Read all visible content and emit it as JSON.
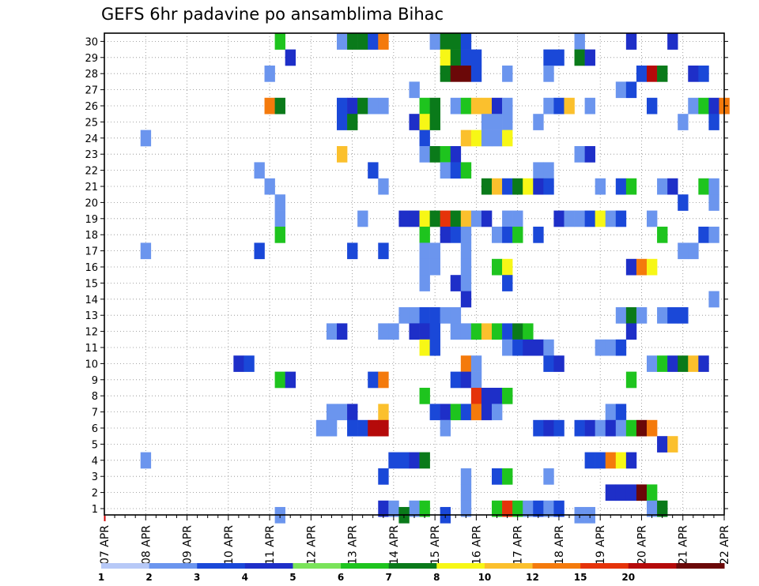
{
  "chart_data": {
    "type": "heatmap",
    "title": "GEFS 6hr padavine po ansamblima Bihac",
    "xlabel": "",
    "ylabel": "",
    "x_unit": "6-hour steps from 07 APR 00Z",
    "x_tick_labels": [
      "07 APR",
      "08 APR",
      "09 APR",
      "10 APR",
      "11 APR",
      "12 APR",
      "13 APR",
      "14 APR",
      "15 APR",
      "16 APR",
      "17 APR",
      "18 APR",
      "19 APR",
      "20 APR",
      "21 APR",
      "22 APR"
    ],
    "y_tick_labels": [
      "1",
      "2",
      "3",
      "4",
      "5",
      "6",
      "7",
      "8",
      "9",
      "10",
      "11",
      "12",
      "13",
      "14",
      "15",
      "16",
      "17",
      "18",
      "19",
      "20",
      "21",
      "22",
      "23",
      "24",
      "25",
      "26",
      "27",
      "28",
      "29",
      "30"
    ],
    "xlim": [
      0,
      60
    ],
    "ylim": [
      1,
      30
    ],
    "legend_labels": [
      "1",
      "2",
      "3",
      "4",
      "5",
      "6",
      "7",
      "8",
      "10",
      "12",
      "15",
      "20"
    ],
    "legend_colors": [
      "#b7c9f7",
      "#6b95ee",
      "#1a48d8",
      "#1e2fc8",
      "#7ae35a",
      "#1ec41e",
      "#0a7a1a",
      "#f7f716",
      "#fbc02d",
      "#f47a0c",
      "#e5330a",
      "#b50a0a",
      "#6b0808"
    ],
    "points": [
      [
        17,
        30,
        5
      ],
      [
        23,
        30,
        1
      ],
      [
        24,
        30,
        6
      ],
      [
        25,
        30,
        6
      ],
      [
        26,
        30,
        2
      ],
      [
        27,
        30,
        9
      ],
      [
        32,
        30,
        1
      ],
      [
        33,
        30,
        6
      ],
      [
        34,
        30,
        6
      ],
      [
        35,
        30,
        2
      ],
      [
        46,
        30,
        1
      ],
      [
        51,
        30,
        3
      ],
      [
        55,
        30,
        3
      ],
      [
        18,
        29,
        3
      ],
      [
        33,
        29,
        7
      ],
      [
        34,
        29,
        6
      ],
      [
        35,
        29,
        2
      ],
      [
        36,
        29,
        2
      ],
      [
        43,
        29,
        2
      ],
      [
        44,
        29,
        2
      ],
      [
        46,
        29,
        6
      ],
      [
        47,
        29,
        3
      ],
      [
        16,
        28,
        1
      ],
      [
        33,
        28,
        6
      ],
      [
        34,
        28,
        12
      ],
      [
        35,
        28,
        12
      ],
      [
        36,
        28,
        2
      ],
      [
        39,
        28,
        1
      ],
      [
        43,
        28,
        1
      ],
      [
        52,
        28,
        2
      ],
      [
        53,
        28,
        11
      ],
      [
        54,
        28,
        6
      ],
      [
        57,
        28,
        3
      ],
      [
        58,
        28,
        2
      ],
      [
        30,
        27,
        1
      ],
      [
        50,
        27,
        1
      ],
      [
        51,
        27,
        2
      ],
      [
        16,
        26,
        9
      ],
      [
        17,
        26,
        6
      ],
      [
        23,
        26,
        2
      ],
      [
        24,
        26,
        3
      ],
      [
        25,
        26,
        6
      ],
      [
        26,
        26,
        1
      ],
      [
        27,
        26,
        1
      ],
      [
        31,
        26,
        5
      ],
      [
        32,
        26,
        6
      ],
      [
        34,
        26,
        1
      ],
      [
        35,
        26,
        5
      ],
      [
        36,
        26,
        8
      ],
      [
        37,
        26,
        8
      ],
      [
        38,
        26,
        3
      ],
      [
        39,
        26,
        1
      ],
      [
        43,
        26,
        1
      ],
      [
        44,
        26,
        2
      ],
      [
        45,
        26,
        8
      ],
      [
        47,
        26,
        1
      ],
      [
        53,
        26,
        2
      ],
      [
        57,
        26,
        1
      ],
      [
        58,
        26,
        5
      ],
      [
        59,
        26,
        3
      ],
      [
        60,
        26,
        9
      ],
      [
        23,
        25,
        2
      ],
      [
        24,
        25,
        6
      ],
      [
        30,
        25,
        3
      ],
      [
        31,
        25,
        7
      ],
      [
        32,
        25,
        6
      ],
      [
        37,
        25,
        1
      ],
      [
        38,
        25,
        1
      ],
      [
        39,
        25,
        1
      ],
      [
        42,
        25,
        1
      ],
      [
        56,
        25,
        1
      ],
      [
        59,
        25,
        2
      ],
      [
        4,
        24,
        1
      ],
      [
        31,
        24,
        2
      ],
      [
        35,
        24,
        8
      ],
      [
        36,
        24,
        7
      ],
      [
        37,
        24,
        1
      ],
      [
        38,
        24,
        1
      ],
      [
        39,
        24,
        7
      ],
      [
        23,
        23,
        8
      ],
      [
        31,
        23,
        1
      ],
      [
        32,
        23,
        6
      ],
      [
        33,
        23,
        5
      ],
      [
        34,
        23,
        3
      ],
      [
        46,
        23,
        1
      ],
      [
        47,
        23,
        3
      ],
      [
        15,
        22,
        1
      ],
      [
        26,
        22,
        2
      ],
      [
        33,
        22,
        1
      ],
      [
        34,
        22,
        2
      ],
      [
        35,
        22,
        5
      ],
      [
        42,
        22,
        1
      ],
      [
        43,
        22,
        1
      ],
      [
        16,
        21,
        1
      ],
      [
        27,
        21,
        1
      ],
      [
        37,
        21,
        6
      ],
      [
        38,
        21,
        8
      ],
      [
        39,
        21,
        2
      ],
      [
        40,
        21,
        6
      ],
      [
        41,
        21,
        7
      ],
      [
        42,
        21,
        3
      ],
      [
        43,
        21,
        2
      ],
      [
        48,
        21,
        1
      ],
      [
        50,
        21,
        2
      ],
      [
        51,
        21,
        5
      ],
      [
        54,
        21,
        1
      ],
      [
        55,
        21,
        3
      ],
      [
        58,
        21,
        5
      ],
      [
        59,
        21,
        1
      ],
      [
        17,
        20,
        1
      ],
      [
        56,
        20,
        2
      ],
      [
        59,
        20,
        1
      ],
      [
        17,
        19,
        1
      ],
      [
        25,
        19,
        1
      ],
      [
        29,
        19,
        3
      ],
      [
        30,
        19,
        3
      ],
      [
        31,
        19,
        7
      ],
      [
        32,
        19,
        6
      ],
      [
        33,
        19,
        10
      ],
      [
        34,
        19,
        6
      ],
      [
        35,
        19,
        8
      ],
      [
        36,
        19,
        1
      ],
      [
        37,
        19,
        3
      ],
      [
        39,
        19,
        1
      ],
      [
        40,
        19,
        1
      ],
      [
        44,
        19,
        3
      ],
      [
        45,
        19,
        1
      ],
      [
        46,
        19,
        1
      ],
      [
        47,
        19,
        2
      ],
      [
        48,
        19,
        7
      ],
      [
        49,
        19,
        1
      ],
      [
        50,
        19,
        2
      ],
      [
        53,
        19,
        1
      ],
      [
        17,
        18,
        5
      ],
      [
        31,
        18,
        5
      ],
      [
        33,
        18,
        3
      ],
      [
        34,
        18,
        2
      ],
      [
        35,
        18,
        1
      ],
      [
        38,
        18,
        1
      ],
      [
        39,
        18,
        2
      ],
      [
        40,
        18,
        5
      ],
      [
        42,
        18,
        2
      ],
      [
        54,
        18,
        5
      ],
      [
        58,
        18,
        2
      ],
      [
        59,
        18,
        1
      ],
      [
        4,
        17,
        1
      ],
      [
        15,
        17,
        2
      ],
      [
        24,
        17,
        2
      ],
      [
        27,
        17,
        2
      ],
      [
        31,
        17,
        1
      ],
      [
        32,
        17,
        1
      ],
      [
        35,
        17,
        1
      ],
      [
        56,
        17,
        1
      ],
      [
        57,
        17,
        1
      ],
      [
        31,
        16,
        1
      ],
      [
        32,
        16,
        1
      ],
      [
        35,
        16,
        1
      ],
      [
        38,
        16,
        5
      ],
      [
        39,
        16,
        7
      ],
      [
        51,
        16,
        3
      ],
      [
        52,
        16,
        9
      ],
      [
        53,
        16,
        7
      ],
      [
        31,
        15,
        1
      ],
      [
        34,
        15,
        3
      ],
      [
        35,
        15,
        1
      ],
      [
        39,
        15,
        2
      ],
      [
        35,
        14,
        3
      ],
      [
        59,
        14,
        1
      ],
      [
        29,
        13,
        1
      ],
      [
        30,
        13,
        1
      ],
      [
        31,
        13,
        2
      ],
      [
        32,
        13,
        2
      ],
      [
        33,
        13,
        1
      ],
      [
        34,
        13,
        1
      ],
      [
        50,
        13,
        1
      ],
      [
        51,
        13,
        6
      ],
      [
        52,
        13,
        1
      ],
      [
        54,
        13,
        1
      ],
      [
        55,
        13,
        2
      ],
      [
        56,
        13,
        2
      ],
      [
        22,
        12,
        1
      ],
      [
        23,
        12,
        3
      ],
      [
        27,
        12,
        1
      ],
      [
        28,
        12,
        1
      ],
      [
        30,
        12,
        3
      ],
      [
        31,
        12,
        3
      ],
      [
        32,
        12,
        2
      ],
      [
        34,
        12,
        1
      ],
      [
        35,
        12,
        1
      ],
      [
        36,
        12,
        5
      ],
      [
        37,
        12,
        8
      ],
      [
        38,
        12,
        5
      ],
      [
        39,
        12,
        2
      ],
      [
        40,
        12,
        6
      ],
      [
        41,
        12,
        5
      ],
      [
        51,
        12,
        3
      ],
      [
        31,
        11,
        7
      ],
      [
        32,
        11,
        2
      ],
      [
        39,
        11,
        1
      ],
      [
        40,
        11,
        2
      ],
      [
        41,
        11,
        3
      ],
      [
        42,
        11,
        3
      ],
      [
        43,
        11,
        1
      ],
      [
        48,
        11,
        1
      ],
      [
        49,
        11,
        1
      ],
      [
        50,
        11,
        2
      ],
      [
        13,
        10,
        3
      ],
      [
        14,
        10,
        2
      ],
      [
        35,
        10,
        9
      ],
      [
        36,
        10,
        1
      ],
      [
        43,
        10,
        2
      ],
      [
        44,
        10,
        3
      ],
      [
        53,
        10,
        1
      ],
      [
        54,
        10,
        5
      ],
      [
        55,
        10,
        3
      ],
      [
        56,
        10,
        6
      ],
      [
        57,
        10,
        8
      ],
      [
        58,
        10,
        3
      ],
      [
        17,
        9,
        5
      ],
      [
        18,
        9,
        3
      ],
      [
        26,
        9,
        2
      ],
      [
        27,
        9,
        9
      ],
      [
        34,
        9,
        2
      ],
      [
        35,
        9,
        3
      ],
      [
        36,
        9,
        1
      ],
      [
        51,
        9,
        5
      ],
      [
        31,
        8,
        5
      ],
      [
        36,
        8,
        10
      ],
      [
        37,
        8,
        3
      ],
      [
        38,
        8,
        3
      ],
      [
        39,
        8,
        5
      ],
      [
        22,
        7,
        1
      ],
      [
        23,
        7,
        1
      ],
      [
        24,
        7,
        3
      ],
      [
        27,
        7,
        8
      ],
      [
        32,
        7,
        2
      ],
      [
        33,
        7,
        3
      ],
      [
        34,
        7,
        5
      ],
      [
        35,
        7,
        2
      ],
      [
        36,
        7,
        9
      ],
      [
        37,
        7,
        3
      ],
      [
        38,
        7,
        1
      ],
      [
        49,
        7,
        1
      ],
      [
        50,
        7,
        2
      ],
      [
        21,
        6,
        1
      ],
      [
        22,
        6,
        1
      ],
      [
        24,
        6,
        2
      ],
      [
        25,
        6,
        2
      ],
      [
        26,
        6,
        11
      ],
      [
        27,
        6,
        11
      ],
      [
        33,
        6,
        1
      ],
      [
        42,
        6,
        2
      ],
      [
        43,
        6,
        3
      ],
      [
        44,
        6,
        2
      ],
      [
        46,
        6,
        2
      ],
      [
        47,
        6,
        3
      ],
      [
        48,
        6,
        1
      ],
      [
        49,
        6,
        3
      ],
      [
        50,
        6,
        1
      ],
      [
        51,
        6,
        5
      ],
      [
        52,
        6,
        12
      ],
      [
        53,
        6,
        9
      ],
      [
        54,
        5,
        3
      ],
      [
        55,
        5,
        8
      ],
      [
        4,
        4,
        1
      ],
      [
        28,
        4,
        2
      ],
      [
        29,
        4,
        2
      ],
      [
        30,
        4,
        3
      ],
      [
        31,
        4,
        6
      ],
      [
        47,
        4,
        2
      ],
      [
        48,
        4,
        2
      ],
      [
        49,
        4,
        9
      ],
      [
        50,
        4,
        7
      ],
      [
        51,
        4,
        3
      ],
      [
        27,
        3,
        2
      ],
      [
        35,
        3,
        1
      ],
      [
        38,
        3,
        2
      ],
      [
        39,
        3,
        5
      ],
      [
        43,
        3,
        1
      ],
      [
        35,
        2,
        1
      ],
      [
        49,
        2,
        3
      ],
      [
        50,
        2,
        3
      ],
      [
        51,
        2,
        3
      ],
      [
        52,
        2,
        12
      ],
      [
        53,
        2,
        5
      ],
      [
        27,
        1,
        3
      ],
      [
        28,
        1,
        1
      ],
      [
        30,
        1,
        1
      ],
      [
        31,
        1,
        5
      ],
      [
        35,
        1,
        1
      ],
      [
        38,
        1,
        5
      ],
      [
        39,
        1,
        10
      ],
      [
        40,
        1,
        5
      ],
      [
        41,
        1,
        1
      ],
      [
        42,
        1,
        2
      ],
      [
        43,
        1,
        1
      ],
      [
        44,
        1,
        2
      ],
      [
        53,
        1,
        1
      ],
      [
        54,
        1,
        6
      ],
      [
        17,
        0.6,
        1
      ],
      [
        29,
        0.6,
        6
      ],
      [
        33,
        0.6,
        2
      ],
      [
        46,
        0.6,
        1
      ],
      [
        47,
        0.6,
        1
      ]
    ]
  }
}
